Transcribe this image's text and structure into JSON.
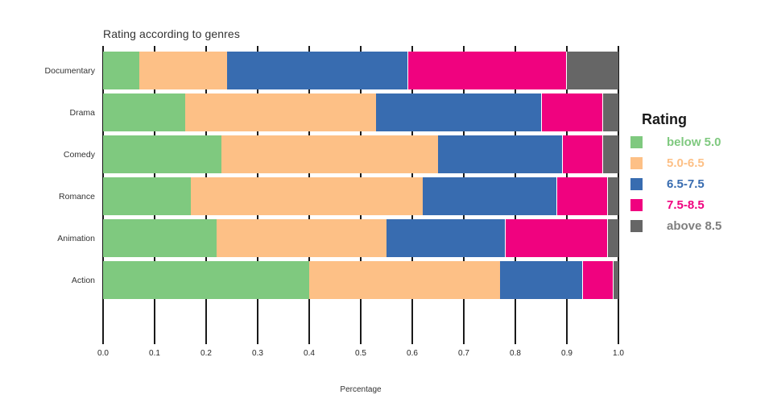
{
  "title": "Rating according to genres",
  "xlabel": "Percentage",
  "legend": {
    "title": "Rating",
    "entries": [
      {
        "label": "below 5.0",
        "color": "#7fc97f",
        "text_color": "#7fc97f"
      },
      {
        "label": "5.0-6.5",
        "color": "#fdc086",
        "text_color": "#fdc086"
      },
      {
        "label": "6.5-7.5",
        "color": "#386cb0",
        "text_color": "#386cb0"
      },
      {
        "label": "7.5-8.5",
        "color": "#f0027f",
        "text_color": "#f0027f"
      },
      {
        "label": "above 8.5",
        "color": "#666666",
        "text_color": "#7f7f7f"
      }
    ]
  },
  "chart_data": {
    "type": "bar",
    "orientation": "horizontal",
    "stacked": true,
    "title": "Rating according to genres",
    "xlabel": "Percentage",
    "ylabel": "",
    "categories": [
      "Documentary",
      "Drama",
      "Comedy",
      "Romance",
      "Animation",
      "Action"
    ],
    "series": [
      {
        "name": "below 5.0",
        "color": "#7fc97f",
        "values": [
          0.07,
          0.16,
          0.23,
          0.17,
          0.22,
          0.4
        ]
      },
      {
        "name": "5.0-6.5",
        "color": "#fdc086",
        "values": [
          0.17,
          0.37,
          0.42,
          0.45,
          0.33,
          0.37
        ]
      },
      {
        "name": "6.5-7.5",
        "color": "#386cb0",
        "values": [
          0.35,
          0.32,
          0.24,
          0.26,
          0.23,
          0.16
        ]
      },
      {
        "name": "7.5-8.5",
        "color": "#f0027f",
        "values": [
          0.31,
          0.12,
          0.08,
          0.1,
          0.2,
          0.06
        ]
      },
      {
        "name": "above 8.5",
        "color": "#666666",
        "values": [
          0.1,
          0.03,
          0.03,
          0.02,
          0.02,
          0.01
        ]
      }
    ],
    "xlim": [
      0.0,
      1.0
    ],
    "xticks": [
      "0.0",
      "0.1",
      "0.2",
      "0.3",
      "0.4",
      "0.5",
      "0.6",
      "0.7",
      "0.8",
      "0.9",
      "1.0"
    ],
    "grid": "vertical-black-ticks",
    "legend_position": "right",
    "legend_title": "Rating"
  }
}
